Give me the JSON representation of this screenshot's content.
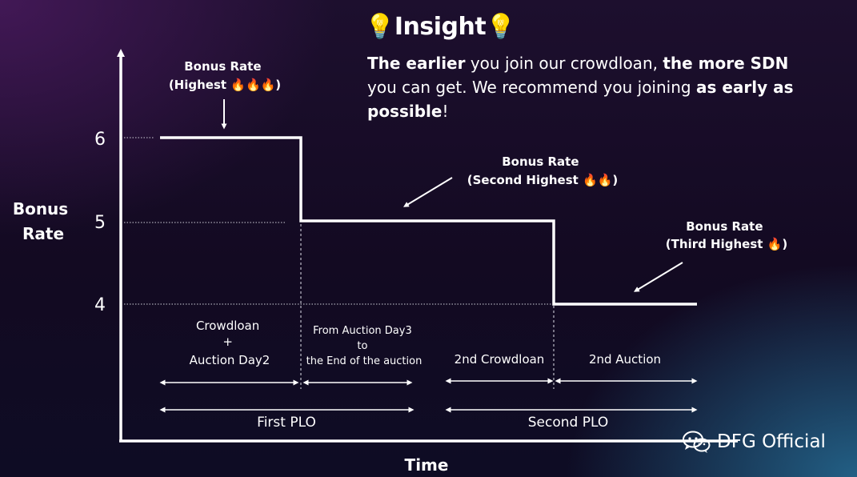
{
  "insight": {
    "icon": "lightbulb-icon",
    "title": "Insight",
    "p1_bold": "The earlier",
    "p2": " you join our crowdloan, ",
    "p3_bold": "the more SDN",
    "p4": "you can get. We recommend you joining ",
    "p5_bold": "as early as possible",
    "p6": "!"
  },
  "watermark": {
    "text": "DFG Official",
    "icon": "wechat-icon"
  },
  "chart_data": {
    "type": "line",
    "step": true,
    "ylabel": "Bonus\nRate",
    "xlabel": "Time",
    "yticks": [
      6,
      5,
      4
    ],
    "ylim": [
      3.3,
      6.8
    ],
    "series": [
      {
        "values": [
          6,
          5,
          4
        ],
        "segments": [
          "Crowdloan + Auction Day2",
          "From Auction Day3 to the End of the auction",
          "2nd Crowdloan + 2nd Auction"
        ]
      }
    ],
    "annotations": [
      {
        "lines": [
          "Bonus Rate",
          "(Highest 🔥🔥🔥)"
        ],
        "level": 6
      },
      {
        "lines": [
          "Bonus Rate",
          "(Second Highest 🔥🔥)"
        ],
        "level": 5
      },
      {
        "lines": [
          "Bonus Rate",
          "(Third Highest 🔥)"
        ],
        "level": 4
      }
    ],
    "periods": [
      {
        "lines": [
          "Crowdloan",
          "+",
          "Auction Day2"
        ]
      },
      {
        "lines": [
          "From Auction Day3",
          "to",
          "the End of the auction"
        ]
      },
      {
        "lines": [
          "2nd Crowdloan"
        ]
      },
      {
        "lines": [
          "2nd Auction"
        ]
      }
    ],
    "phases": [
      "First PLO",
      "Second PLO"
    ],
    "colors": {
      "line": "#ffffff",
      "text": "#ffffff"
    }
  }
}
